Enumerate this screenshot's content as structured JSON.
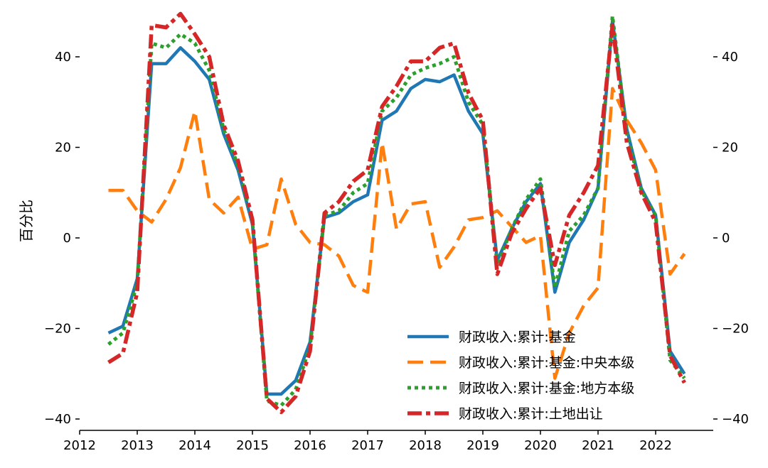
{
  "chart_data": {
    "type": "line",
    "title": "",
    "xlabel": "",
    "ylabel": "百分比",
    "xlim": [
      2012.0,
      2023.0
    ],
    "ylim": [
      -40,
      50
    ],
    "x_ticks": [
      "2012",
      "2013",
      "2014",
      "2015",
      "2016",
      "2017",
      "2018",
      "2019",
      "2020",
      "2021",
      "2022"
    ],
    "y_ticks_left": [
      "−40",
      "−20",
      "0",
      "20",
      "40"
    ],
    "y_ticks_right": [
      "−40",
      "−20",
      "0",
      "20",
      "40"
    ],
    "grid": false,
    "legend_position": "lower-right",
    "colors": {
      "blue": "#1f77b4",
      "orange": "#ff7f0e",
      "green": "#2ca02c",
      "red": "#d62728"
    },
    "series": [
      {
        "name": "财政收入:累计:基金",
        "color": "#1f77b4",
        "style": "solid",
        "points": [
          [
            2012.5,
            -21
          ],
          [
            2012.75,
            -19.5
          ],
          [
            2013.0,
            -9
          ],
          [
            2013.25,
            38.5
          ],
          [
            2013.5,
            38.5
          ],
          [
            2013.75,
            42
          ],
          [
            2014.0,
            39
          ],
          [
            2014.25,
            35
          ],
          [
            2014.5,
            23
          ],
          [
            2014.75,
            15
          ],
          [
            2015.0,
            3
          ],
          [
            2015.25,
            -34.5
          ],
          [
            2015.5,
            -34.5
          ],
          [
            2015.75,
            -31.5
          ],
          [
            2016.0,
            -23
          ],
          [
            2016.25,
            4.5
          ],
          [
            2016.5,
            5.5
          ],
          [
            2016.75,
            8
          ],
          [
            2017.0,
            9.5
          ],
          [
            2017.25,
            26
          ],
          [
            2017.5,
            28
          ],
          [
            2017.75,
            33
          ],
          [
            2018.0,
            35
          ],
          [
            2018.25,
            34.5
          ],
          [
            2018.5,
            36
          ],
          [
            2018.75,
            28
          ],
          [
            2019.0,
            23
          ],
          [
            2019.25,
            -5
          ],
          [
            2019.5,
            2
          ],
          [
            2019.75,
            8
          ],
          [
            2020.0,
            12
          ],
          [
            2020.25,
            -12
          ],
          [
            2020.5,
            -1
          ],
          [
            2020.75,
            4
          ],
          [
            2021.0,
            11
          ],
          [
            2021.25,
            48
          ],
          [
            2021.5,
            24
          ],
          [
            2021.75,
            11
          ],
          [
            2022.0,
            5
          ],
          [
            2022.25,
            -25
          ],
          [
            2022.5,
            -30
          ]
        ]
      },
      {
        "name": "财政收入:累计:基金:中央本级",
        "color": "#ff7f0e",
        "style": "dashed",
        "points": [
          [
            2012.5,
            10.5
          ],
          [
            2012.75,
            10.5
          ],
          [
            2013.0,
            6
          ],
          [
            2013.25,
            3.5
          ],
          [
            2013.5,
            8.5
          ],
          [
            2013.75,
            15.5
          ],
          [
            2014.0,
            28
          ],
          [
            2014.25,
            8.5
          ],
          [
            2014.5,
            5.5
          ],
          [
            2014.75,
            9
          ],
          [
            2015.0,
            -2.5
          ],
          [
            2015.25,
            -1.5
          ],
          [
            2015.5,
            13
          ],
          [
            2015.75,
            3
          ],
          [
            2016.0,
            -1
          ],
          [
            2016.25,
            -1.5
          ],
          [
            2016.5,
            -4
          ],
          [
            2016.75,
            -10.5
          ],
          [
            2017.0,
            -12
          ],
          [
            2017.25,
            21
          ],
          [
            2017.5,
            2
          ],
          [
            2017.75,
            7.5
          ],
          [
            2018.0,
            8
          ],
          [
            2018.25,
            -6.5
          ],
          [
            2018.5,
            -2
          ],
          [
            2018.75,
            4
          ],
          [
            2019.0,
            4.5
          ],
          [
            2019.25,
            6
          ],
          [
            2019.5,
            2.5
          ],
          [
            2019.75,
            -1
          ],
          [
            2020.0,
            0.5
          ],
          [
            2020.25,
            -31
          ],
          [
            2020.5,
            -21
          ],
          [
            2020.75,
            -15
          ],
          [
            2021.0,
            -11
          ],
          [
            2021.25,
            33
          ],
          [
            2021.5,
            26
          ],
          [
            2021.75,
            21
          ],
          [
            2022.0,
            15
          ],
          [
            2022.25,
            -8
          ],
          [
            2022.5,
            -3.5
          ]
        ]
      },
      {
        "name": "财政收入:累计:基金:地方本级",
        "color": "#2ca02c",
        "style": "dotted",
        "points": [
          [
            2012.5,
            -23.5
          ],
          [
            2012.75,
            -21
          ],
          [
            2013.0,
            -10
          ],
          [
            2013.25,
            43
          ],
          [
            2013.5,
            42
          ],
          [
            2013.75,
            45
          ],
          [
            2014.0,
            43
          ],
          [
            2014.25,
            37
          ],
          [
            2014.5,
            24
          ],
          [
            2014.75,
            16
          ],
          [
            2015.0,
            3.5
          ],
          [
            2015.25,
            -36
          ],
          [
            2015.5,
            -37
          ],
          [
            2015.75,
            -33.5
          ],
          [
            2016.0,
            -24
          ],
          [
            2016.25,
            5
          ],
          [
            2016.5,
            6
          ],
          [
            2016.75,
            10
          ],
          [
            2017.0,
            12
          ],
          [
            2017.25,
            28
          ],
          [
            2017.5,
            31
          ],
          [
            2017.75,
            36
          ],
          [
            2018.0,
            37.5
          ],
          [
            2018.25,
            38.5
          ],
          [
            2018.5,
            40
          ],
          [
            2018.75,
            30
          ],
          [
            2019.0,
            25
          ],
          [
            2019.25,
            -6
          ],
          [
            2019.5,
            2
          ],
          [
            2019.75,
            8.5
          ],
          [
            2020.0,
            13
          ],
          [
            2020.25,
            -11
          ],
          [
            2020.5,
            1.5
          ],
          [
            2020.75,
            5
          ],
          [
            2021.0,
            11
          ],
          [
            2021.25,
            49
          ],
          [
            2021.5,
            23
          ],
          [
            2021.75,
            10.5
          ],
          [
            2022.0,
            5
          ],
          [
            2022.25,
            -27
          ],
          [
            2022.5,
            -31
          ]
        ]
      },
      {
        "name": "财政收入:累计:土地出让",
        "color": "#d62728",
        "style": "dashdot",
        "points": [
          [
            2012.5,
            -27.5
          ],
          [
            2012.75,
            -25.5
          ],
          [
            2013.0,
            -12
          ],
          [
            2013.25,
            47
          ],
          [
            2013.5,
            46.5
          ],
          [
            2013.75,
            49.5
          ],
          [
            2014.0,
            45
          ],
          [
            2014.25,
            40
          ],
          [
            2014.5,
            25
          ],
          [
            2014.75,
            17
          ],
          [
            2015.0,
            4
          ],
          [
            2015.25,
            -35.5
          ],
          [
            2015.5,
            -38.5
          ],
          [
            2015.75,
            -35
          ],
          [
            2016.0,
            -25
          ],
          [
            2016.25,
            5.5
          ],
          [
            2016.5,
            8
          ],
          [
            2016.75,
            12.5
          ],
          [
            2017.0,
            15
          ],
          [
            2017.25,
            29
          ],
          [
            2017.5,
            33.5
          ],
          [
            2017.75,
            39
          ],
          [
            2018.0,
            39
          ],
          [
            2018.25,
            42
          ],
          [
            2018.5,
            43
          ],
          [
            2018.75,
            32
          ],
          [
            2019.0,
            26
          ],
          [
            2019.25,
            -8
          ],
          [
            2019.5,
            1
          ],
          [
            2019.75,
            6.5
          ],
          [
            2020.0,
            11
          ],
          [
            2020.25,
            -6
          ],
          [
            2020.5,
            5
          ],
          [
            2020.75,
            10
          ],
          [
            2021.0,
            16
          ],
          [
            2021.25,
            47
          ],
          [
            2021.5,
            21
          ],
          [
            2021.75,
            10
          ],
          [
            2022.0,
            3.5
          ],
          [
            2022.25,
            -26
          ],
          [
            2022.5,
            -32
          ]
        ]
      }
    ]
  }
}
